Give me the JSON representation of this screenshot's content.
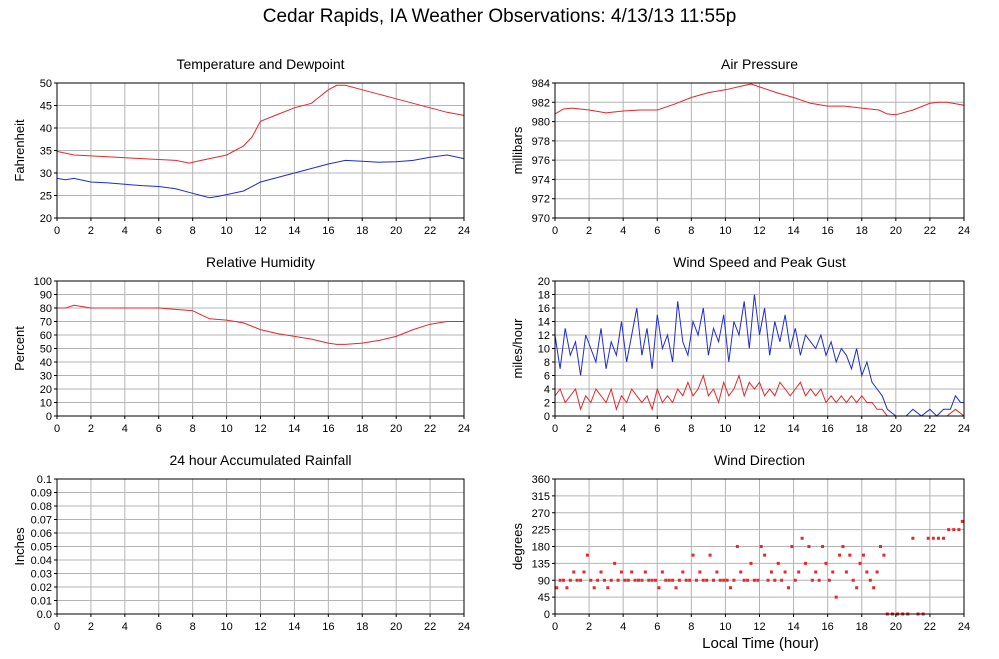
{
  "page": {
    "title": "Cedar Rapids, IA Weather Observations: 4/13/13 11:55p",
    "xlabel": "Local Time (hour)"
  },
  "colors": {
    "red": "#e8262b",
    "blue": "#1f2bd0",
    "grid": "#b4b4b4",
    "axis": "#000000"
  },
  "chart_data": [
    {
      "id": "temp",
      "type": "line",
      "title": "Temperature and Dewpoint",
      "ylabel": "Fahrenheit",
      "xlabel": "",
      "xlim": [
        0,
        24
      ],
      "ylim": [
        20,
        50
      ],
      "xticks": [
        0,
        2,
        4,
        6,
        8,
        10,
        12,
        14,
        16,
        18,
        20,
        22,
        24
      ],
      "yticks": [
        20,
        25,
        30,
        35,
        40,
        45,
        50
      ],
      "ytick_labels": [
        "20",
        "25",
        "30",
        "35",
        "40",
        "45",
        "50"
      ],
      "grid": true,
      "series": [
        {
          "name": "",
          "color": "red",
          "x": [
            0,
            1,
            2,
            3,
            4,
            5,
            6,
            7,
            7.8,
            8.5,
            9,
            10,
            11,
            11.5,
            12,
            13,
            14,
            15,
            15.5,
            16,
            16.5,
            17,
            18,
            19,
            20,
            21,
            22,
            23,
            24
          ],
          "y": [
            34.8,
            34.0,
            33.8,
            33.6,
            33.4,
            33.2,
            33.0,
            32.8,
            32.2,
            32.8,
            33.2,
            34.0,
            36.0,
            38.0,
            41.5,
            43.0,
            44.5,
            45.5,
            47.0,
            48.5,
            49.5,
            49.5,
            48.5,
            47.5,
            46.5,
            45.5,
            44.5,
            43.5,
            42.8
          ]
        },
        {
          "name": "",
          "color": "blue",
          "x": [
            0,
            0.5,
            1,
            2,
            3,
            4,
            5,
            6,
            7,
            8,
            8.5,
            9,
            9.5,
            10,
            11,
            12,
            13,
            14,
            15,
            16,
            17,
            18,
            19,
            20,
            21,
            22,
            23,
            24
          ],
          "y": [
            28.8,
            28.5,
            28.8,
            28.0,
            27.8,
            27.5,
            27.2,
            27.0,
            26.5,
            25.5,
            25.0,
            24.5,
            24.8,
            25.2,
            26.0,
            28.0,
            29.0,
            30.0,
            31.0,
            32.0,
            32.8,
            32.6,
            32.4,
            32.5,
            32.8,
            33.5,
            34.0,
            33.2
          ]
        }
      ]
    },
    {
      "id": "pressure",
      "type": "line",
      "title": "Air Pressure",
      "ylabel": "millibars",
      "xlabel": "",
      "xlim": [
        0,
        24
      ],
      "ylim": [
        970,
        984
      ],
      "xticks": [
        0,
        2,
        4,
        6,
        8,
        10,
        12,
        14,
        16,
        18,
        20,
        22,
        24
      ],
      "yticks": [
        970,
        972,
        974,
        976,
        978,
        980,
        982,
        984
      ],
      "ytick_labels": [
        "970",
        "972",
        "974",
        "976",
        "978",
        "980",
        "982",
        "984"
      ],
      "grid": true,
      "series": [
        {
          "name": "",
          "color": "red",
          "x": [
            0,
            0.5,
            1,
            2,
            3,
            4,
            5,
            6,
            7,
            8,
            9,
            10,
            11,
            11.5,
            12,
            13,
            14,
            15,
            16,
            17,
            18,
            19,
            19.5,
            20,
            21,
            22,
            22.5,
            23,
            24
          ],
          "y": [
            980.8,
            981.3,
            981.4,
            981.2,
            980.9,
            981.1,
            981.2,
            981.2,
            981.8,
            982.5,
            983.0,
            983.3,
            983.7,
            983.9,
            983.6,
            983.0,
            982.5,
            981.9,
            981.6,
            981.6,
            981.4,
            981.2,
            980.8,
            980.7,
            981.2,
            981.9,
            982.0,
            982.0,
            981.7
          ]
        }
      ]
    },
    {
      "id": "humidity",
      "type": "line",
      "title": "Relative Humidity",
      "ylabel": "Percent",
      "xlabel": "",
      "xlim": [
        0,
        24
      ],
      "ylim": [
        0,
        100
      ],
      "xticks": [
        0,
        2,
        4,
        6,
        8,
        10,
        12,
        14,
        16,
        18,
        20,
        22,
        24
      ],
      "yticks": [
        0,
        10,
        20,
        30,
        40,
        50,
        60,
        70,
        80,
        90,
        100
      ],
      "ytick_labels": [
        "0",
        "10",
        "20",
        "30",
        "40",
        "50",
        "60",
        "70",
        "80",
        "90",
        "100"
      ],
      "grid": true,
      "series": [
        {
          "name": "",
          "color": "red",
          "x": [
            0,
            0.5,
            1,
            2,
            3,
            4,
            5,
            6,
            7,
            8,
            8.5,
            9,
            10,
            11,
            12,
            13,
            14,
            15,
            16,
            16.5,
            17,
            18,
            19,
            20,
            21,
            22,
            23,
            24
          ],
          "y": [
            80,
            80,
            82,
            80,
            80,
            80,
            80,
            80,
            79,
            78,
            75,
            72,
            71,
            69,
            64,
            61,
            59,
            57,
            54,
            53,
            53,
            54,
            56,
            59,
            64,
            68,
            70,
            70
          ]
        }
      ]
    },
    {
      "id": "wind",
      "type": "line",
      "title": "Wind Speed and Peak Gust",
      "ylabel": "miles/hour",
      "xlabel": "",
      "xlim": [
        0,
        24
      ],
      "ylim": [
        0,
        20
      ],
      "xticks": [
        0,
        2,
        4,
        6,
        8,
        10,
        12,
        14,
        16,
        18,
        20,
        22,
        24
      ],
      "yticks": [
        0,
        2,
        4,
        6,
        8,
        10,
        12,
        14,
        16,
        18,
        20
      ],
      "ytick_labels": [
        "0",
        "2",
        "4",
        "6",
        "8",
        "10",
        "12",
        "14",
        "16",
        "18",
        "20"
      ],
      "grid": true,
      "series": [
        {
          "name": "",
          "color": "blue",
          "x": [
            0,
            0.3,
            0.6,
            0.9,
            1.2,
            1.5,
            1.8,
            2.1,
            2.4,
            2.7,
            3.0,
            3.3,
            3.6,
            3.9,
            4.2,
            4.5,
            4.8,
            5.1,
            5.4,
            5.7,
            6.0,
            6.3,
            6.6,
            6.9,
            7.2,
            7.5,
            7.8,
            8.1,
            8.4,
            8.7,
            9.0,
            9.3,
            9.6,
            9.9,
            10.2,
            10.5,
            10.8,
            11.1,
            11.4,
            11.7,
            12.0,
            12.3,
            12.6,
            12.9,
            13.2,
            13.5,
            13.8,
            14.1,
            14.4,
            14.7,
            15.0,
            15.3,
            15.6,
            15.9,
            16.2,
            16.5,
            16.8,
            17.1,
            17.4,
            17.7,
            18.0,
            18.3,
            18.6,
            18.9,
            19.2,
            19.5,
            20.0,
            20.6,
            21.0,
            21.5,
            22.0,
            22.4,
            22.8,
            23.2,
            23.5,
            23.8,
            24.0
          ],
          "y": [
            12,
            7,
            13,
            9,
            11,
            6,
            12,
            10,
            8,
            13,
            7,
            11,
            9,
            14,
            8,
            12,
            16,
            9,
            13,
            7,
            15,
            10,
            12,
            8,
            17,
            11,
            9,
            14,
            12,
            16,
            9,
            13,
            11,
            15,
            8,
            14,
            12,
            17,
            10,
            18,
            12,
            16,
            9,
            14,
            11,
            15,
            10,
            13,
            9,
            12,
            11,
            10,
            12,
            9,
            11,
            8,
            10,
            9,
            7,
            10,
            6,
            8,
            5,
            4,
            3,
            1,
            0,
            0,
            1,
            0,
            1,
            0,
            1,
            1,
            3,
            2,
            2
          ]
        },
        {
          "name": "",
          "color": "red",
          "x": [
            0,
            0.3,
            0.6,
            0.9,
            1.2,
            1.5,
            1.8,
            2.1,
            2.4,
            2.7,
            3.0,
            3.3,
            3.6,
            3.9,
            4.2,
            4.5,
            4.8,
            5.1,
            5.4,
            5.7,
            6.0,
            6.3,
            6.6,
            6.9,
            7.2,
            7.5,
            7.8,
            8.1,
            8.4,
            8.7,
            9.0,
            9.3,
            9.6,
            9.9,
            10.2,
            10.5,
            10.8,
            11.1,
            11.4,
            11.7,
            12.0,
            12.3,
            12.6,
            12.9,
            13.2,
            13.5,
            13.8,
            14.1,
            14.4,
            14.7,
            15.0,
            15.3,
            15.6,
            15.9,
            16.2,
            16.5,
            16.8,
            17.1,
            17.4,
            17.7,
            18.0,
            18.3,
            18.6,
            18.9,
            19.2,
            19.5,
            20.0,
            21.0,
            22.0,
            23.0,
            23.5,
            24.0
          ],
          "y": [
            3,
            4,
            2,
            3,
            4,
            1,
            3,
            2,
            4,
            3,
            2,
            4,
            1,
            3,
            2,
            4,
            3,
            2,
            3,
            1,
            4,
            2,
            3,
            2,
            4,
            3,
            5,
            3,
            4,
            6,
            3,
            4,
            2,
            5,
            3,
            4,
            6,
            3,
            5,
            4,
            5,
            3,
            4,
            3,
            5,
            4,
            3,
            4,
            5,
            3,
            4,
            3,
            4,
            2,
            3,
            2,
            3,
            2,
            3,
            2,
            3,
            2,
            2,
            1,
            1,
            0,
            0,
            0,
            0,
            0,
            1,
            0
          ]
        }
      ]
    },
    {
      "id": "rain",
      "type": "line",
      "title": "24 hour Accumulated Rainfall",
      "ylabel": "Inches",
      "xlabel": "",
      "xlim": [
        0,
        24
      ],
      "ylim": [
        0,
        0.1
      ],
      "xticks": [
        0,
        2,
        4,
        6,
        8,
        10,
        12,
        14,
        16,
        18,
        20,
        22,
        24
      ],
      "yticks": [
        0,
        0.01,
        0.02,
        0.03,
        0.04,
        0.05,
        0.06,
        0.07,
        0.08,
        0.09,
        0.1
      ],
      "ytick_labels": [
        "0.0",
        "0.01",
        "0.02",
        "0.03",
        "0.04",
        "0.05",
        "0.06",
        "0.07",
        "0.08",
        "0.09",
        "0.1"
      ],
      "grid": true,
      "series": [
        {
          "name": "",
          "color": "red",
          "x": [
            0,
            24
          ],
          "y": [
            0,
            0
          ]
        }
      ]
    },
    {
      "id": "direction",
      "type": "scatter",
      "title": "Wind Direction",
      "ylabel": "degrees",
      "xlabel": "Local Time (hour)",
      "xlim": [
        0,
        24
      ],
      "ylim": [
        0,
        360
      ],
      "xticks": [
        0,
        2,
        4,
        6,
        8,
        10,
        12,
        14,
        16,
        18,
        20,
        22,
        24
      ],
      "yticks": [
        0,
        45,
        90,
        135,
        180,
        225,
        270,
        315,
        360
      ],
      "ytick_labels": [
        "0",
        "45",
        "90",
        "135",
        "180",
        "225",
        "270",
        "315",
        "360"
      ],
      "grid": true,
      "series": [
        {
          "name": "",
          "color": "red",
          "x": [
            0.1,
            0.3,
            0.5,
            0.7,
            0.9,
            1.1,
            1.3,
            1.5,
            1.7,
            1.9,
            2.1,
            2.3,
            2.5,
            2.7,
            2.9,
            3.1,
            3.3,
            3.5,
            3.7,
            3.9,
            4.1,
            4.3,
            4.5,
            4.7,
            4.9,
            5.1,
            5.3,
            5.5,
            5.7,
            5.9,
            6.1,
            6.3,
            6.5,
            6.7,
            6.9,
            7.1,
            7.3,
            7.5,
            7.7,
            7.9,
            8.1,
            8.3,
            8.5,
            8.7,
            8.9,
            9.1,
            9.3,
            9.5,
            9.7,
            9.9,
            10.1,
            10.3,
            10.5,
            10.7,
            10.9,
            11.1,
            11.3,
            11.5,
            11.7,
            11.9,
            12.1,
            12.3,
            12.5,
            12.7,
            12.9,
            13.1,
            13.3,
            13.5,
            13.7,
            13.9,
            14.1,
            14.3,
            14.5,
            14.7,
            14.9,
            15.1,
            15.3,
            15.5,
            15.7,
            15.9,
            16.1,
            16.3,
            16.5,
            16.7,
            16.9,
            17.1,
            17.3,
            17.5,
            17.7,
            17.9,
            18.1,
            18.3,
            18.5,
            18.7,
            18.9,
            19.1,
            19.3,
            19.5,
            19.8,
            20.1,
            20.4,
            20.7,
            21.0,
            21.3,
            21.6,
            21.9,
            22.2,
            22.5,
            22.8,
            23.1,
            23.4,
            23.7,
            23.9
          ],
          "y": [
            70,
            90,
            90,
            70,
            90,
            112,
            90,
            90,
            112,
            157,
            90,
            70,
            90,
            112,
            90,
            70,
            90,
            135,
            90,
            112,
            90,
            90,
            112,
            90,
            90,
            90,
            112,
            90,
            90,
            90,
            70,
            112,
            90,
            90,
            90,
            70,
            90,
            112,
            90,
            90,
            157,
            90,
            112,
            90,
            90,
            157,
            90,
            112,
            90,
            90,
            90,
            70,
            90,
            180,
            112,
            90,
            90,
            135,
            90,
            90,
            180,
            157,
            90,
            112,
            90,
            135,
            90,
            112,
            70,
            180,
            90,
            112,
            202,
            135,
            180,
            90,
            112,
            90,
            180,
            135,
            90,
            112,
            45,
            157,
            180,
            112,
            157,
            90,
            70,
            135,
            157,
            112,
            90,
            70,
            112,
            180,
            157,
            0,
            0,
            0,
            0,
            0,
            202,
            0,
            0,
            202,
            202,
            202,
            202,
            225,
            225,
            225,
            247
          ]
        }
      ]
    }
  ]
}
